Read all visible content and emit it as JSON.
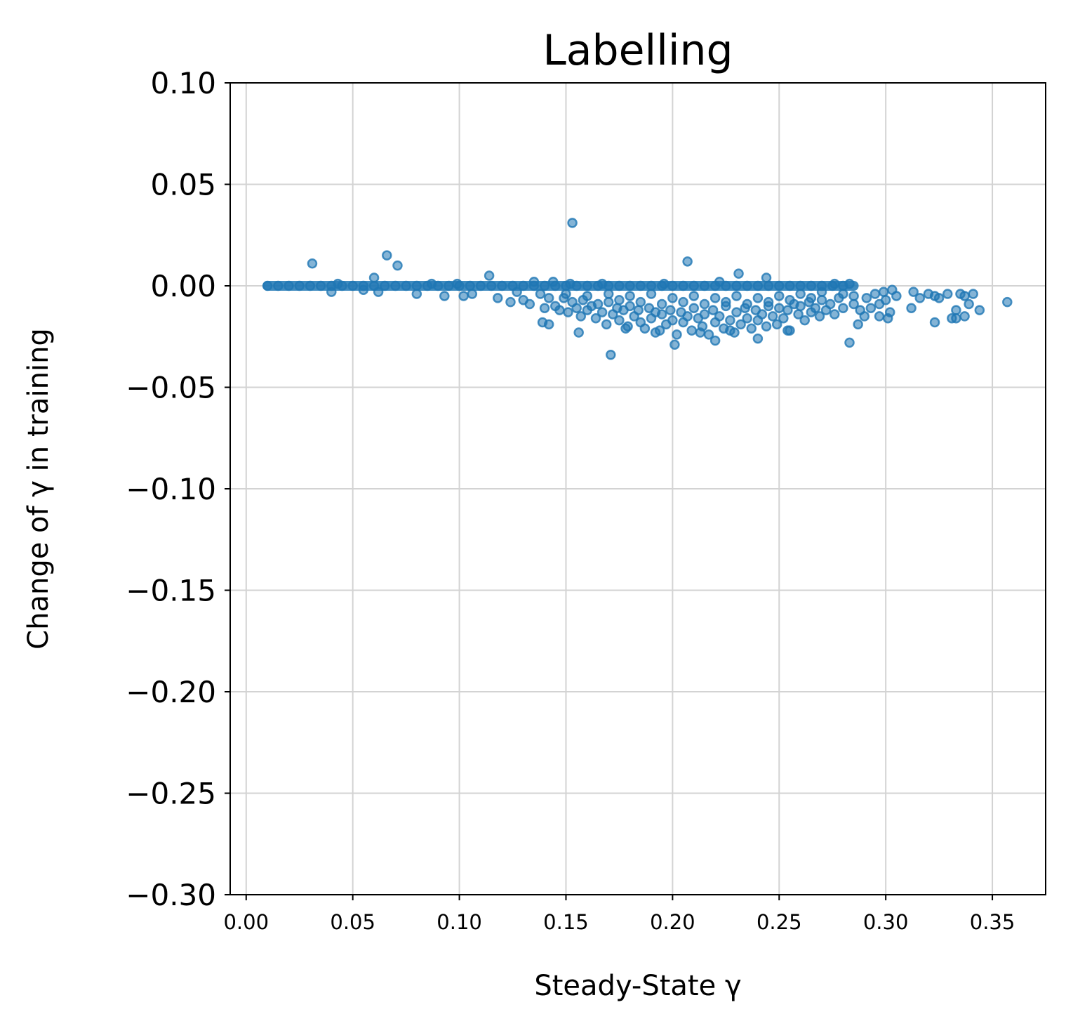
{
  "chart_data": {
    "type": "scatter",
    "title": "Labelling",
    "xlabel": "Steady-State γ",
    "ylabel": "Change of γ in training",
    "xlim": [
      -0.0075,
      0.375
    ],
    "ylim": [
      -0.3,
      0.1
    ],
    "xticks": [
      0.0,
      0.05,
      0.1,
      0.15,
      0.2,
      0.25,
      0.3,
      0.35
    ],
    "xtick_labels": [
      "0.00",
      "0.05",
      "0.10",
      "0.15",
      "0.20",
      "0.25",
      "0.30",
      "0.35"
    ],
    "yticks": [
      0.1,
      0.05,
      0.0,
      -0.05,
      -0.1,
      -0.15,
      -0.2,
      -0.25,
      -0.3
    ],
    "ytick_labels": [
      "0.10",
      "0.05",
      "0.00",
      "−0.05",
      "−0.10",
      "−0.15",
      "−0.20",
      "−0.25",
      "−0.30"
    ],
    "grid": true,
    "colors": {
      "marker": "#1f77b4",
      "grid": "#d3d3d3"
    },
    "series": [
      {
        "points": [
          [
            0.01,
            0.0
          ],
          [
            0.015,
            0.0
          ],
          [
            0.02,
            0.0
          ],
          [
            0.025,
            0.0
          ],
          [
            0.03,
            0.0
          ],
          [
            0.035,
            0.0
          ],
          [
            0.04,
            0.0
          ],
          [
            0.045,
            0.0
          ],
          [
            0.05,
            0.0
          ],
          [
            0.055,
            0.0
          ],
          [
            0.06,
            0.0
          ],
          [
            0.065,
            0.0
          ],
          [
            0.07,
            0.0
          ],
          [
            0.075,
            0.0
          ],
          [
            0.08,
            0.0
          ],
          [
            0.085,
            0.0
          ],
          [
            0.09,
            0.0
          ],
          [
            0.095,
            0.0
          ],
          [
            0.1,
            0.0
          ],
          [
            0.105,
            0.0
          ],
          [
            0.11,
            0.0
          ],
          [
            0.115,
            0.0
          ],
          [
            0.12,
            0.0
          ],
          [
            0.125,
            0.0
          ],
          [
            0.13,
            0.0
          ],
          [
            0.135,
            0.0
          ],
          [
            0.14,
            0.0
          ],
          [
            0.145,
            0.0
          ],
          [
            0.15,
            0.0
          ],
          [
            0.155,
            0.0
          ],
          [
            0.16,
            0.0
          ],
          [
            0.165,
            0.0
          ],
          [
            0.17,
            0.0
          ],
          [
            0.175,
            0.0
          ],
          [
            0.18,
            0.0
          ],
          [
            0.185,
            0.0
          ],
          [
            0.19,
            0.0
          ],
          [
            0.195,
            0.0
          ],
          [
            0.2,
            0.0
          ],
          [
            0.205,
            0.0
          ],
          [
            0.21,
            0.0
          ],
          [
            0.215,
            0.0
          ],
          [
            0.22,
            0.0
          ],
          [
            0.225,
            0.0
          ],
          [
            0.23,
            0.0
          ],
          [
            0.235,
            0.0
          ],
          [
            0.24,
            0.0
          ],
          [
            0.245,
            0.0
          ],
          [
            0.25,
            0.0
          ],
          [
            0.255,
            0.0
          ],
          [
            0.26,
            0.0
          ],
          [
            0.265,
            0.0
          ],
          [
            0.27,
            0.0
          ],
          [
            0.275,
            0.0
          ],
          [
            0.28,
            0.0
          ],
          [
            0.031,
            0.011
          ],
          [
            0.066,
            0.015
          ],
          [
            0.071,
            0.01
          ],
          [
            0.114,
            0.005
          ],
          [
            0.06,
            0.004
          ],
          [
            0.043,
            0.001
          ],
          [
            0.087,
            0.001
          ],
          [
            0.099,
            0.001
          ],
          [
            0.135,
            0.002
          ],
          [
            0.144,
            0.002
          ],
          [
            0.152,
            0.001
          ],
          [
            0.167,
            0.001
          ],
          [
            0.153,
            0.031
          ],
          [
            0.207,
            0.012
          ],
          [
            0.231,
            0.006
          ],
          [
            0.244,
            0.004
          ],
          [
            0.222,
            0.002
          ],
          [
            0.196,
            0.001
          ],
          [
            0.276,
            0.001
          ],
          [
            0.283,
            0.001
          ],
          [
            0.04,
            -0.003
          ],
          [
            0.055,
            -0.002
          ],
          [
            0.062,
            -0.003
          ],
          [
            0.08,
            -0.004
          ],
          [
            0.093,
            -0.005
          ],
          [
            0.102,
            -0.005
          ],
          [
            0.106,
            -0.004
          ],
          [
            0.118,
            -0.006
          ],
          [
            0.124,
            -0.008
          ],
          [
            0.127,
            -0.003
          ],
          [
            0.13,
            -0.007
          ],
          [
            0.133,
            -0.009
          ],
          [
            0.138,
            -0.004
          ],
          [
            0.14,
            -0.011
          ],
          [
            0.142,
            -0.006
          ],
          [
            0.145,
            -0.01
          ],
          [
            0.147,
            -0.012
          ],
          [
            0.149,
            -0.006
          ],
          [
            0.151,
            -0.013
          ],
          [
            0.153,
            -0.008
          ],
          [
            0.155,
            -0.011
          ],
          [
            0.157,
            -0.015
          ],
          [
            0.158,
            -0.007
          ],
          [
            0.16,
            -0.012
          ],
          [
            0.162,
            -0.01
          ],
          [
            0.164,
            -0.016
          ],
          [
            0.165,
            -0.009
          ],
          [
            0.167,
            -0.013
          ],
          [
            0.169,
            -0.019
          ],
          [
            0.17,
            -0.008
          ],
          [
            0.172,
            -0.014
          ],
          [
            0.174,
            -0.011
          ],
          [
            0.175,
            -0.017
          ],
          [
            0.177,
            -0.012
          ],
          [
            0.179,
            -0.02
          ],
          [
            0.18,
            -0.01
          ],
          [
            0.182,
            -0.015
          ],
          [
            0.184,
            -0.012
          ],
          [
            0.185,
            -0.018
          ],
          [
            0.187,
            -0.021
          ],
          [
            0.189,
            -0.011
          ],
          [
            0.19,
            -0.016
          ],
          [
            0.192,
            -0.013
          ],
          [
            0.194,
            -0.022
          ],
          [
            0.195,
            -0.014
          ],
          [
            0.197,
            -0.019
          ],
          [
            0.199,
            -0.012
          ],
          [
            0.2,
            -0.017
          ],
          [
            0.202,
            -0.024
          ],
          [
            0.204,
            -0.013
          ],
          [
            0.205,
            -0.018
          ],
          [
            0.207,
            -0.015
          ],
          [
            0.209,
            -0.022
          ],
          [
            0.21,
            -0.011
          ],
          [
            0.212,
            -0.016
          ],
          [
            0.214,
            -0.02
          ],
          [
            0.215,
            -0.014
          ],
          [
            0.217,
            -0.024
          ],
          [
            0.219,
            -0.012
          ],
          [
            0.22,
            -0.018
          ],
          [
            0.222,
            -0.015
          ],
          [
            0.224,
            -0.021
          ],
          [
            0.225,
            -0.01
          ],
          [
            0.227,
            -0.017
          ],
          [
            0.229,
            -0.023
          ],
          [
            0.23,
            -0.013
          ],
          [
            0.232,
            -0.019
          ],
          [
            0.234,
            -0.011
          ],
          [
            0.235,
            -0.016
          ],
          [
            0.237,
            -0.021
          ],
          [
            0.239,
            -0.012
          ],
          [
            0.24,
            -0.017
          ],
          [
            0.242,
            -0.014
          ],
          [
            0.244,
            -0.02
          ],
          [
            0.245,
            -0.01
          ],
          [
            0.247,
            -0.015
          ],
          [
            0.249,
            -0.019
          ],
          [
            0.25,
            -0.011
          ],
          [
            0.252,
            -0.016
          ],
          [
            0.254,
            -0.012
          ],
          [
            0.255,
            -0.022
          ],
          [
            0.257,
            -0.009
          ],
          [
            0.259,
            -0.014
          ],
          [
            0.26,
            -0.01
          ],
          [
            0.262,
            -0.017
          ],
          [
            0.264,
            -0.008
          ],
          [
            0.265,
            -0.013
          ],
          [
            0.267,
            -0.011
          ],
          [
            0.269,
            -0.015
          ],
          [
            0.27,
            -0.007
          ],
          [
            0.272,
            -0.012
          ],
          [
            0.274,
            -0.009
          ],
          [
            0.276,
            -0.014
          ],
          [
            0.278,
            -0.006
          ],
          [
            0.28,
            -0.011
          ],
          [
            0.15,
            -0.004
          ],
          [
            0.16,
            -0.005
          ],
          [
            0.17,
            -0.004
          ],
          [
            0.18,
            -0.005
          ],
          [
            0.19,
            -0.004
          ],
          [
            0.2,
            -0.006
          ],
          [
            0.21,
            -0.005
          ],
          [
            0.22,
            -0.006
          ],
          [
            0.23,
            -0.005
          ],
          [
            0.24,
            -0.006
          ],
          [
            0.25,
            -0.005
          ],
          [
            0.26,
            -0.004
          ],
          [
            0.27,
            -0.003
          ],
          [
            0.28,
            -0.004
          ],
          [
            0.285,
            -0.005
          ],
          [
            0.175,
            -0.007
          ],
          [
            0.185,
            -0.008
          ],
          [
            0.195,
            -0.009
          ],
          [
            0.205,
            -0.008
          ],
          [
            0.215,
            -0.009
          ],
          [
            0.225,
            -0.008
          ],
          [
            0.235,
            -0.009
          ],
          [
            0.245,
            -0.008
          ],
          [
            0.255,
            -0.007
          ],
          [
            0.265,
            -0.006
          ],
          [
            0.139,
            -0.018
          ],
          [
            0.142,
            -0.019
          ],
          [
            0.156,
            -0.023
          ],
          [
            0.171,
            -0.034
          ],
          [
            0.178,
            -0.021
          ],
          [
            0.192,
            -0.023
          ],
          [
            0.201,
            -0.029
          ],
          [
            0.213,
            -0.023
          ],
          [
            0.22,
            -0.027
          ],
          [
            0.227,
            -0.022
          ],
          [
            0.24,
            -0.026
          ],
          [
            0.254,
            -0.022
          ],
          [
            0.283,
            -0.028
          ],
          [
            0.287,
            -0.019
          ],
          [
            0.29,
            -0.015
          ],
          [
            0.288,
            -0.012
          ],
          [
            0.285,
            -0.009
          ],
          [
            0.291,
            -0.006
          ],
          [
            0.293,
            -0.011
          ],
          [
            0.295,
            -0.004
          ],
          [
            0.297,
            -0.009
          ],
          [
            0.299,
            -0.003
          ],
          [
            0.3,
            -0.007
          ],
          [
            0.302,
            -0.013
          ],
          [
            0.303,
            -0.002
          ],
          [
            0.305,
            -0.005
          ],
          [
            0.297,
            -0.015
          ],
          [
            0.301,
            -0.016
          ],
          [
            0.312,
            -0.011
          ],
          [
            0.313,
            -0.003
          ],
          [
            0.316,
            -0.006
          ],
          [
            0.32,
            -0.004
          ],
          [
            0.323,
            -0.005
          ],
          [
            0.325,
            -0.006
          ],
          [
            0.329,
            -0.004
          ],
          [
            0.323,
            -0.018
          ],
          [
            0.331,
            -0.016
          ],
          [
            0.333,
            -0.016
          ],
          [
            0.333,
            -0.012
          ],
          [
            0.335,
            -0.004
          ],
          [
            0.337,
            -0.005
          ],
          [
            0.339,
            -0.009
          ],
          [
            0.341,
            -0.004
          ],
          [
            0.337,
            -0.015
          ],
          [
            0.344,
            -0.012
          ],
          [
            0.357,
            -0.008
          ]
        ]
      }
    ]
  }
}
